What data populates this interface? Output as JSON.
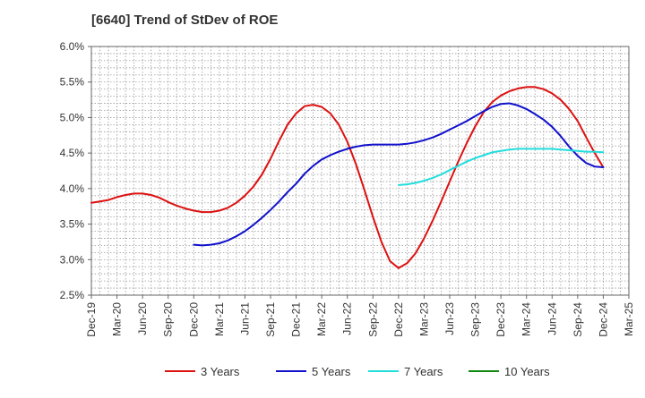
{
  "chart_data": {
    "type": "line",
    "title": "[6640]  Trend of StDev of ROE",
    "xlabel": "",
    "ylabel": "",
    "x_ticks": [
      "Dec-19",
      "Mar-20",
      "Jun-20",
      "Sep-20",
      "Dec-20",
      "Mar-21",
      "Jun-21",
      "Sep-21",
      "Dec-21",
      "Mar-22",
      "Jun-22",
      "Sep-22",
      "Dec-22",
      "Mar-23",
      "Jun-23",
      "Sep-23",
      "Dec-23",
      "Mar-24",
      "Jun-24",
      "Sep-24",
      "Dec-24",
      "Mar-25"
    ],
    "y_ticks": [
      "2.5%",
      "3.0%",
      "3.5%",
      "4.0%",
      "4.5%",
      "5.0%",
      "5.5%",
      "6.0%"
    ],
    "ylim": [
      2.5,
      6.0
    ],
    "y_unit": "%",
    "grid": true,
    "legend_position": "bottom",
    "series": [
      {
        "name": "3 Years",
        "color": "#dd1111",
        "x": [
          "Dec-19",
          "Jan-20",
          "Feb-20",
          "Mar-20",
          "Apr-20",
          "May-20",
          "Jun-20",
          "Jul-20",
          "Aug-20",
          "Sep-20",
          "Oct-20",
          "Nov-20",
          "Dec-20",
          "Jan-21",
          "Feb-21",
          "Mar-21",
          "Apr-21",
          "May-21",
          "Jun-21",
          "Jul-21",
          "Aug-21",
          "Sep-21",
          "Oct-21",
          "Nov-21",
          "Dec-21",
          "Jan-22",
          "Feb-22",
          "Mar-22",
          "Apr-22",
          "May-22",
          "Jun-22",
          "Jul-22",
          "Aug-22",
          "Sep-22",
          "Oct-22",
          "Nov-22",
          "Dec-22",
          "Jan-23",
          "Feb-23",
          "Mar-23",
          "Apr-23",
          "May-23",
          "Jun-23",
          "Jul-23",
          "Aug-23",
          "Sep-23",
          "Oct-23",
          "Nov-23",
          "Dec-23",
          "Jan-24",
          "Feb-24",
          "Mar-24",
          "Apr-24",
          "May-24",
          "Jun-24",
          "Jul-24",
          "Aug-24",
          "Sep-24",
          "Oct-24",
          "Nov-24",
          "Dec-24"
        ],
        "values": [
          3.8,
          3.82,
          3.84,
          3.88,
          3.91,
          3.93,
          3.93,
          3.91,
          3.87,
          3.81,
          3.76,
          3.72,
          3.69,
          3.67,
          3.67,
          3.69,
          3.73,
          3.8,
          3.9,
          4.03,
          4.2,
          4.42,
          4.67,
          4.9,
          5.06,
          5.16,
          5.18,
          5.15,
          5.06,
          4.9,
          4.66,
          4.35,
          3.98,
          3.6,
          3.25,
          2.98,
          2.88,
          2.95,
          3.09,
          3.3,
          3.55,
          3.82,
          4.1,
          4.38,
          4.64,
          4.88,
          5.08,
          5.22,
          5.31,
          5.37,
          5.41,
          5.43,
          5.43,
          5.4,
          5.34,
          5.25,
          5.12,
          4.95,
          4.72,
          4.5,
          4.3
        ]
      },
      {
        "name": "5 Years",
        "color": "#1111cc",
        "x": [
          "Dec-20",
          "Jan-21",
          "Feb-21",
          "Mar-21",
          "Apr-21",
          "May-21",
          "Jun-21",
          "Jul-21",
          "Aug-21",
          "Sep-21",
          "Oct-21",
          "Nov-21",
          "Dec-21",
          "Jan-22",
          "Feb-22",
          "Mar-22",
          "Apr-22",
          "May-22",
          "Jun-22",
          "Jul-22",
          "Aug-22",
          "Sep-22",
          "Oct-22",
          "Nov-22",
          "Dec-22",
          "Jan-23",
          "Feb-23",
          "Mar-23",
          "Apr-23",
          "May-23",
          "Jun-23",
          "Jul-23",
          "Aug-23",
          "Sep-23",
          "Oct-23",
          "Nov-23",
          "Dec-23",
          "Jan-24",
          "Feb-24",
          "Mar-24",
          "Apr-24",
          "May-24",
          "Jun-24",
          "Jul-24",
          "Aug-24",
          "Sep-24",
          "Oct-24",
          "Nov-24",
          "Dec-24"
        ],
        "values": [
          3.21,
          3.2,
          3.21,
          3.23,
          3.27,
          3.33,
          3.4,
          3.49,
          3.59,
          3.7,
          3.82,
          3.95,
          4.07,
          4.21,
          4.32,
          4.41,
          4.47,
          4.52,
          4.56,
          4.59,
          4.61,
          4.62,
          4.62,
          4.62,
          4.62,
          4.63,
          4.65,
          4.68,
          4.72,
          4.77,
          4.83,
          4.89,
          4.95,
          5.02,
          5.09,
          5.15,
          5.19,
          5.2,
          5.17,
          5.12,
          5.05,
          4.97,
          4.87,
          4.74,
          4.59,
          4.46,
          4.36,
          4.31,
          4.3
        ]
      },
      {
        "name": "7 Years",
        "color": "#22dddd",
        "x": [
          "Dec-22",
          "Jan-23",
          "Feb-23",
          "Mar-23",
          "Apr-23",
          "May-23",
          "Jun-23",
          "Jul-23",
          "Aug-23",
          "Sep-23",
          "Oct-23",
          "Nov-23",
          "Dec-23",
          "Jan-24",
          "Feb-24",
          "Mar-24",
          "Apr-24",
          "May-24",
          "Jun-24",
          "Jul-24",
          "Aug-24",
          "Sep-24",
          "Oct-24",
          "Nov-24",
          "Dec-24"
        ],
        "values": [
          4.05,
          4.06,
          4.08,
          4.11,
          4.15,
          4.2,
          4.26,
          4.32,
          4.38,
          4.43,
          4.47,
          4.51,
          4.53,
          4.55,
          4.56,
          4.56,
          4.56,
          4.56,
          4.56,
          4.55,
          4.54,
          4.53,
          4.52,
          4.52,
          4.51
        ]
      },
      {
        "name": "10 Years",
        "color": "#118811",
        "x": [],
        "values": []
      }
    ]
  }
}
